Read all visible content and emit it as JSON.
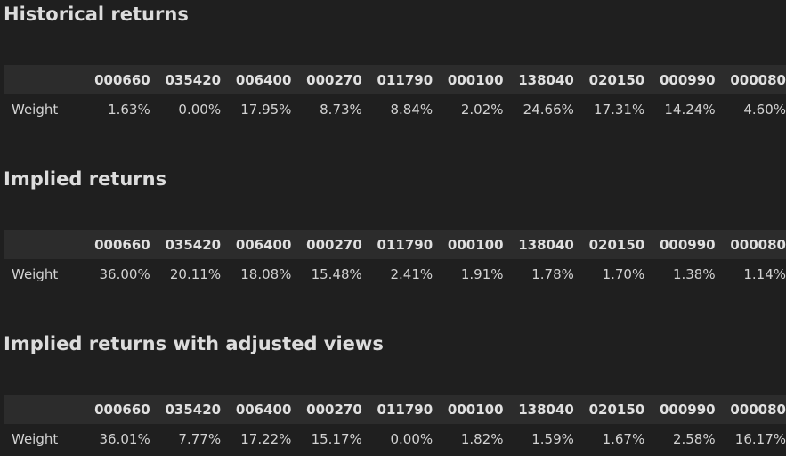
{
  "columns": [
    "000660",
    "035420",
    "006400",
    "000270",
    "011790",
    "000100",
    "138040",
    "020150",
    "000990",
    "000080"
  ],
  "row_label": "Weight",
  "sections": [
    {
      "title": "Historical returns",
      "weights": [
        "1.63%",
        "0.00%",
        "17.95%",
        "8.73%",
        "8.84%",
        "2.02%",
        "24.66%",
        "17.31%",
        "14.24%",
        "4.60%"
      ]
    },
    {
      "title": "Implied returns",
      "weights": [
        "36.00%",
        "20.11%",
        "18.08%",
        "15.48%",
        "2.41%",
        "1.91%",
        "1.78%",
        "1.70%",
        "1.38%",
        "1.14%"
      ]
    },
    {
      "title": "Implied returns with adjusted views",
      "weights": [
        "36.01%",
        "7.77%",
        "17.22%",
        "15.17%",
        "0.00%",
        "1.82%",
        "1.59%",
        "1.67%",
        "2.58%",
        "16.17%"
      ]
    }
  ]
}
